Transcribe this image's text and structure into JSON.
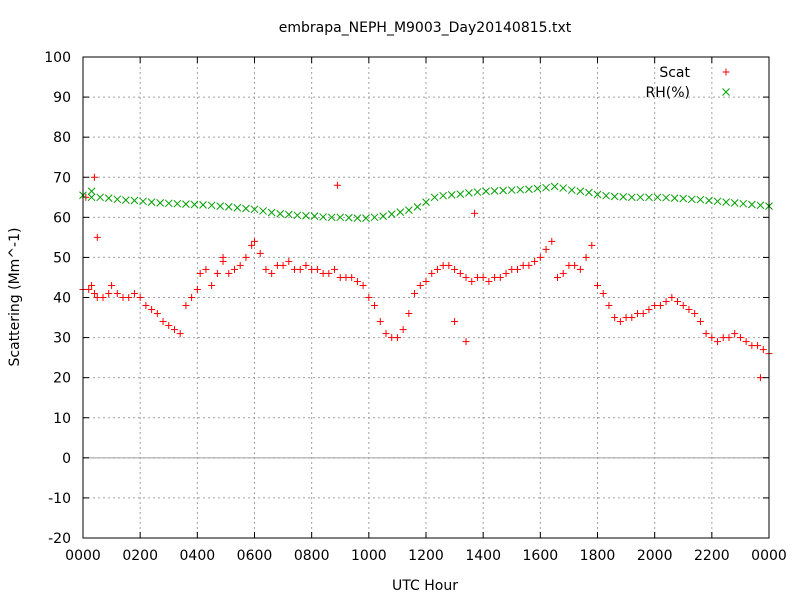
{
  "chart_data": {
    "type": "scatter",
    "title": "embrapa_NEPH_M9003_Day20140815.txt",
    "xlabel": "UTC Hour",
    "ylabel": "Scattering (Mm^-1)",
    "xlim": [
      0,
      24
    ],
    "ylim": [
      -20,
      100
    ],
    "x_tick_labels": [
      "0000",
      "0200",
      "0400",
      "0600",
      "0800",
      "1000",
      "1200",
      "1400",
      "1600",
      "1800",
      "2000",
      "2200",
      "0000"
    ],
    "y_ticks": [
      -20,
      -10,
      0,
      10,
      20,
      30,
      40,
      50,
      60,
      70,
      80,
      90,
      100
    ],
    "grid": true,
    "legend_position": "top-right",
    "series": [
      {
        "name": "Scat",
        "marker": "plus",
        "color": "#ff0000",
        "x": [
          0.0,
          0.1,
          0.2,
          0.3,
          0.4,
          0.5,
          0.7,
          0.9,
          1.0,
          1.2,
          1.4,
          1.6,
          1.8,
          2.0,
          2.2,
          2.4,
          2.6,
          2.8,
          3.0,
          3.2,
          3.4,
          3.6,
          3.8,
          4.0,
          4.1,
          4.3,
          4.5,
          4.7,
          4.9,
          5.1,
          5.3,
          5.5,
          5.7,
          5.9,
          6.0,
          6.2,
          6.4,
          6.6,
          6.8,
          7.0,
          7.2,
          7.4,
          7.6,
          7.8,
          8.0,
          8.2,
          8.4,
          8.6,
          8.8,
          9.0,
          9.2,
          9.4,
          9.6,
          9.8,
          10.0,
          10.2,
          10.4,
          10.6,
          10.8,
          11.0,
          11.2,
          11.4,
          11.6,
          11.8,
          12.0,
          12.2,
          12.4,
          12.6,
          12.8,
          13.0,
          13.2,
          13.4,
          13.6,
          13.8,
          14.0,
          14.2,
          14.4,
          14.6,
          14.8,
          15.0,
          15.2,
          15.4,
          15.6,
          15.8,
          16.0,
          16.2,
          16.4,
          16.6,
          16.8,
          17.0,
          17.2,
          17.4,
          17.6,
          17.8,
          18.0,
          18.2,
          18.4,
          18.6,
          18.8,
          19.0,
          19.2,
          19.4,
          19.6,
          19.8,
          20.0,
          20.2,
          20.4,
          20.6,
          20.8,
          21.0,
          21.2,
          21.4,
          21.6,
          21.8,
          22.0,
          22.2,
          22.4,
          22.6,
          22.8,
          23.0,
          23.2,
          23.4,
          23.6,
          23.8,
          24.0,
          0.4,
          0.5,
          4.9,
          8.9,
          13.7,
          13.0,
          13.4,
          23.7
        ],
        "y": [
          42,
          65,
          42,
          43,
          41,
          40,
          40,
          41,
          43,
          41,
          40,
          40,
          41,
          40,
          38,
          37,
          36,
          34,
          33,
          32,
          31,
          38,
          40,
          42,
          46,
          47,
          43,
          46,
          49,
          46,
          47,
          48,
          50,
          53,
          54,
          51,
          47,
          46,
          48,
          48,
          49,
          47,
          47,
          48,
          47,
          47,
          46,
          46,
          47,
          45,
          45,
          45,
          44,
          43,
          40,
          38,
          34,
          31,
          30,
          30,
          32,
          36,
          41,
          43,
          44,
          46,
          47,
          48,
          48,
          47,
          46,
          45,
          44,
          45,
          45,
          44,
          45,
          45,
          46,
          47,
          47,
          48,
          48,
          49,
          50,
          52,
          54,
          45,
          46,
          48,
          48,
          47,
          50,
          53,
          43,
          41,
          38,
          35,
          34,
          35,
          35,
          36,
          36,
          37,
          38,
          38,
          39,
          40,
          39,
          38,
          37,
          36,
          34,
          31,
          30,
          29,
          30,
          30,
          31,
          30,
          29,
          28,
          28,
          27,
          26,
          70,
          55,
          50,
          68,
          61,
          34,
          29,
          20
        ]
      },
      {
        "name": "RH(%)",
        "marker": "cross",
        "color": "#00a000",
        "x": [
          0.0,
          0.3,
          0.6,
          0.9,
          1.2,
          1.5,
          1.8,
          2.1,
          2.4,
          2.7,
          3.0,
          3.3,
          3.6,
          3.9,
          4.2,
          4.5,
          4.8,
          5.1,
          5.4,
          5.7,
          6.0,
          6.3,
          6.6,
          6.9,
          7.2,
          7.5,
          7.8,
          8.1,
          8.4,
          8.7,
          9.0,
          9.3,
          9.6,
          9.9,
          10.2,
          10.5,
          10.8,
          11.1,
          11.4,
          11.7,
          12.0,
          12.3,
          12.6,
          12.9,
          13.2,
          13.5,
          13.8,
          14.1,
          14.4,
          14.7,
          15.0,
          15.3,
          15.6,
          15.9,
          16.2,
          16.5,
          16.8,
          17.1,
          17.4,
          17.7,
          18.0,
          18.3,
          18.6,
          18.9,
          19.2,
          19.5,
          19.8,
          20.1,
          20.4,
          20.7,
          21.0,
          21.3,
          21.6,
          21.9,
          22.2,
          22.5,
          22.8,
          23.1,
          23.4,
          23.7,
          24.0,
          0.3
        ],
        "y": [
          65.5,
          65,
          65,
          64.8,
          64.5,
          64.3,
          64.2,
          64,
          63.8,
          63.6,
          63.5,
          63.4,
          63.3,
          63.2,
          63.1,
          63,
          62.8,
          62.6,
          62.4,
          62.2,
          62,
          61.6,
          61.2,
          60.9,
          60.7,
          60.5,
          60.4,
          60.3,
          60.1,
          60,
          60,
          59.9,
          59.8,
          59.8,
          60,
          60.3,
          60.8,
          61.3,
          61.8,
          62.6,
          63.8,
          65,
          65.4,
          65.6,
          65.8,
          66.1,
          66.3,
          66.5,
          66.6,
          66.7,
          66.8,
          66.9,
          67,
          67.2,
          67.4,
          67.7,
          67.3,
          66.8,
          66.5,
          66.2,
          65.7,
          65.4,
          65.2,
          65.1,
          65,
          65,
          65,
          65,
          64.9,
          64.8,
          64.7,
          64.5,
          64.4,
          64.2,
          64,
          63.8,
          63.6,
          63.4,
          63.2,
          63,
          62.8,
          66.5
        ]
      }
    ]
  }
}
